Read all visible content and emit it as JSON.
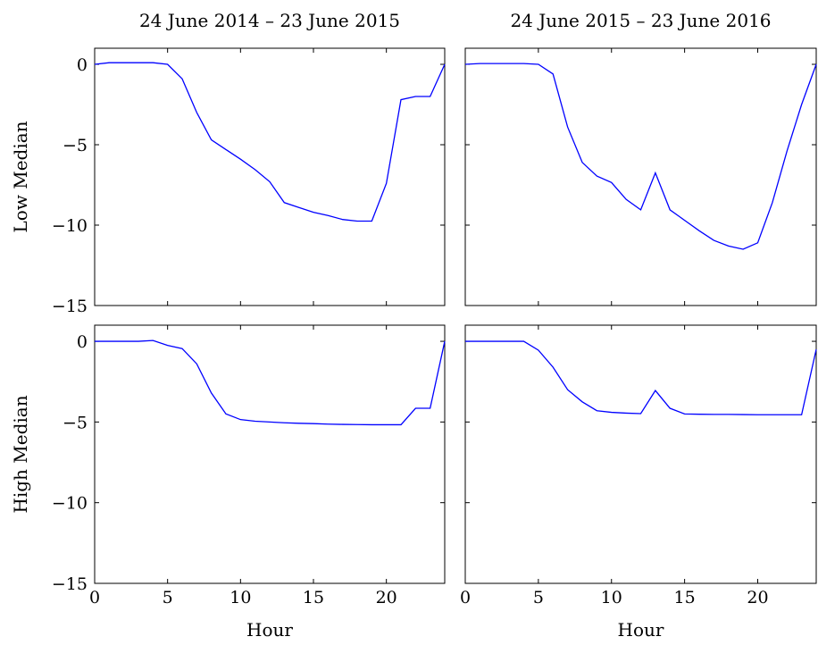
{
  "chart_data": [
    {
      "type": "line",
      "title": "24 June 2014 – 23 June 2015",
      "xlabel": "",
      "ylabel": "Low Median",
      "xlim": [
        0,
        24
      ],
      "ylim": [
        -15,
        1
      ],
      "xticks": [
        0,
        5,
        10,
        15,
        20
      ],
      "yticks": [
        0,
        -5,
        -10,
        -15
      ],
      "ytick_labels": [
        "0",
        "−5",
        "−10",
        "−15"
      ],
      "xtick_labels": [],
      "grid": false,
      "color": "#0000ff",
      "x": [
        0,
        1,
        2,
        3,
        4,
        5,
        6,
        7,
        8,
        9,
        10,
        11,
        12,
        13,
        14,
        15,
        16,
        17,
        18,
        19,
        20,
        21,
        22,
        23,
        24
      ],
      "y": [
        0,
        0.1,
        0.1,
        0.1,
        0.1,
        0,
        -0.9,
        -3.0,
        -4.7,
        -5.3,
        -5.9,
        -6.55,
        -7.3,
        -8.6,
        -8.9,
        -9.2,
        -9.4,
        -9.65,
        -9.75,
        -9.75,
        -7.4,
        -2.2,
        -2.0,
        -2.0,
        0
      ]
    },
    {
      "type": "line",
      "title": "24 June 2015 – 23 June 2016",
      "xlabel": "",
      "ylabel": "",
      "xlim": [
        0,
        24
      ],
      "ylim": [
        -15,
        1
      ],
      "xticks": [
        0,
        5,
        10,
        15,
        20
      ],
      "yticks": [
        0,
        -5,
        -10,
        -15
      ],
      "ytick_labels": [],
      "xtick_labels": [],
      "grid": false,
      "color": "#0000ff",
      "x": [
        0,
        1,
        2,
        3,
        4,
        5,
        6,
        7,
        8,
        9,
        10,
        11,
        12,
        13,
        14,
        15,
        16,
        17,
        18,
        19,
        20,
        21,
        22,
        23,
        24
      ],
      "y": [
        0,
        0.05,
        0.05,
        0.05,
        0.05,
        0,
        -0.6,
        -3.9,
        -6.1,
        -6.95,
        -7.35,
        -8.4,
        -9.05,
        -6.75,
        -9.05,
        -9.7,
        -10.35,
        -10.95,
        -11.3,
        -11.5,
        -11.1,
        -8.6,
        -5.4,
        -2.5,
        0
      ]
    },
    {
      "type": "line",
      "title": "",
      "xlabel": "Hour",
      "ylabel": "High Median",
      "xlim": [
        0,
        24
      ],
      "ylim": [
        -15,
        1
      ],
      "xticks": [
        0,
        5,
        10,
        15,
        20
      ],
      "yticks": [
        0,
        -5,
        -10,
        -15
      ],
      "ytick_labels": [
        "0",
        "−5",
        "−10",
        "−15"
      ],
      "xtick_labels": [
        "0",
        "5",
        "10",
        "15",
        "20"
      ],
      "grid": false,
      "color": "#0000ff",
      "x": [
        0,
        1,
        2,
        3,
        4,
        5,
        6,
        7,
        8,
        9,
        10,
        11,
        12,
        13,
        14,
        15,
        16,
        17,
        18,
        19,
        20,
        21,
        22,
        23,
        24
      ],
      "y": [
        0,
        0,
        0,
        0,
        0.05,
        -0.25,
        -0.45,
        -1.4,
        -3.2,
        -4.5,
        -4.85,
        -4.95,
        -5.0,
        -5.05,
        -5.08,
        -5.1,
        -5.13,
        -5.15,
        -5.16,
        -5.17,
        -5.17,
        -5.17,
        -4.15,
        -4.15,
        0
      ]
    },
    {
      "type": "line",
      "title": "",
      "xlabel": "Hour",
      "ylabel": "",
      "xlim": [
        0,
        24
      ],
      "ylim": [
        -15,
        1
      ],
      "xticks": [
        0,
        5,
        10,
        15,
        20
      ],
      "yticks": [
        0,
        -5,
        -10,
        -15
      ],
      "ytick_labels": [],
      "xtick_labels": [
        "0",
        "5",
        "10",
        "15",
        "20"
      ],
      "grid": false,
      "color": "#0000ff",
      "x": [
        0,
        1,
        2,
        3,
        4,
        5,
        6,
        7,
        8,
        9,
        10,
        11,
        12,
        13,
        14,
        15,
        16,
        17,
        18,
        19,
        20,
        21,
        22,
        23,
        24
      ],
      "y": [
        0,
        0,
        0,
        0,
        0,
        -0.55,
        -1.6,
        -3.0,
        -3.75,
        -4.3,
        -4.4,
        -4.45,
        -4.48,
        -3.05,
        -4.15,
        -4.5,
        -4.52,
        -4.53,
        -4.53,
        -4.54,
        -4.55,
        -4.55,
        -4.55,
        -4.55,
        -0.5
      ]
    }
  ]
}
